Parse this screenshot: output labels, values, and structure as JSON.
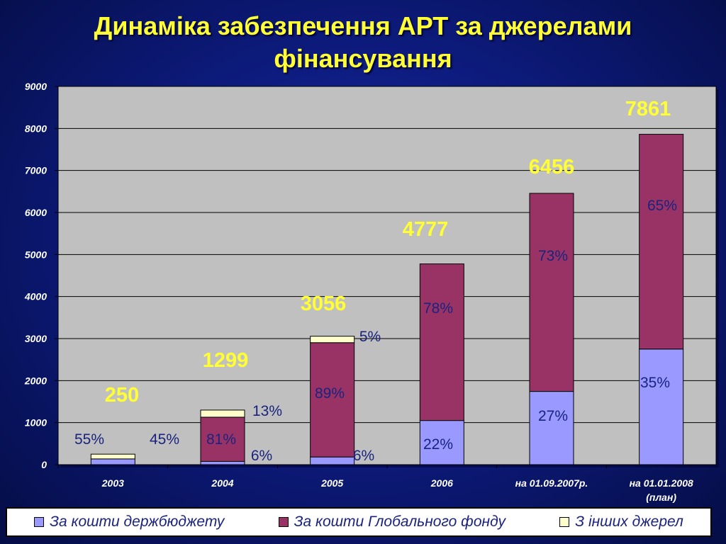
{
  "page": {
    "title_line1": "Динаміка забезпечення АРТ за джерелами",
    "title_line2": "фінансування"
  },
  "colors": {
    "background": "#0d1b7e",
    "plot_area": "#c0c0c0",
    "title": "#ffff33",
    "total_labels": "#ffff33",
    "percent_labels": "#1a237e",
    "axis_labels": "#ffffff"
  },
  "chart_data": {
    "type": "bar",
    "stacked": true,
    "categories": [
      "2003",
      "2004",
      "2005",
      "2006",
      "на 01.09.2007р.",
      "на 01.01.2008 (план)"
    ],
    "category_lines": [
      [
        "2003"
      ],
      [
        "2004"
      ],
      [
        "2005"
      ],
      [
        "2006"
      ],
      [
        "на 01.09.2007р."
      ],
      [
        "на 01.01.2008",
        "(план)"
      ]
    ],
    "series": [
      {
        "name": "За кошти держбюджету",
        "color": "#9999ff",
        "values": [
          137,
          78,
          183,
          1051,
          1743,
          2751
        ],
        "labels": [
          "55%",
          "6%",
          "6%",
          "22%",
          "27%",
          "35%"
        ]
      },
      {
        "name": "За кошти Глобального фонду",
        "color": "#993366",
        "values": [
          0,
          1052,
          2720,
          3726,
          4713,
          5110
        ],
        "labels": [
          "",
          "81%",
          "89%",
          "78%",
          "73%",
          "65%"
        ]
      },
      {
        "name": "З інших джерел",
        "color": "#ffffcc",
        "values": [
          113,
          169,
          153,
          0,
          0,
          0
        ],
        "labels": [
          "45%",
          "13%",
          "5%",
          "",
          "",
          ""
        ]
      }
    ],
    "totals": [
      "250",
      "1299",
      "3056",
      "4777",
      "6456",
      "7861"
    ],
    "ylim": [
      0,
      9000
    ],
    "yticks": [
      0,
      1000,
      2000,
      3000,
      4000,
      5000,
      6000,
      7000,
      8000,
      9000
    ],
    "grid": true,
    "legend_position": "bottom",
    "title": "Динаміка забезпечення АРТ за джерелами фінансування",
    "xlabel": "",
    "ylabel": ""
  }
}
